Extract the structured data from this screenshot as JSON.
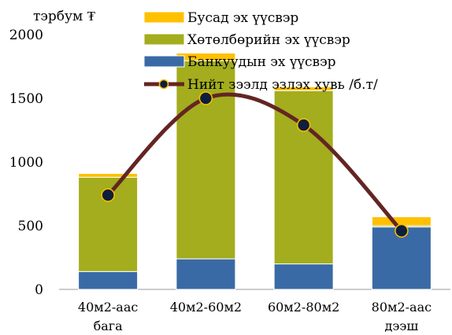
{
  "chart_data": {
    "type": "bar",
    "stacked": true,
    "unit_label": "тэрбум ₮",
    "categories": [
      "40м2-аас бага",
      "40м2-60м2",
      "60м2-80м2",
      "80м2-аас дээш"
    ],
    "series": [
      {
        "name": "Банкуудын эх үүсвэр",
        "color": "#3a6aa5",
        "values": [
          140,
          240,
          200,
          490
        ]
      },
      {
        "name": "Хөтөлбөрийн эх үүсвэр",
        "color": "#a3ad1d",
        "values": [
          740,
          1555,
          1360,
          10
        ]
      },
      {
        "name": "Бусад эх үүсвэр",
        "color": "#ffc000",
        "values": [
          30,
          60,
          30,
          70
        ]
      }
    ],
    "line_series": {
      "name": "Нийт зээлд эзлэх хувь /б.т/",
      "color": "#632523",
      "marker_fill": "#0d1f3c",
      "marker_edge": "#ffc000",
      "values": [
        740,
        1500,
        1290,
        460
      ]
    },
    "ylim": [
      0,
      2000
    ],
    "yticks": [
      "0",
      "500",
      "1000",
      "1500",
      "2000"
    ],
    "grid": false,
    "legend_position": "top-center"
  }
}
